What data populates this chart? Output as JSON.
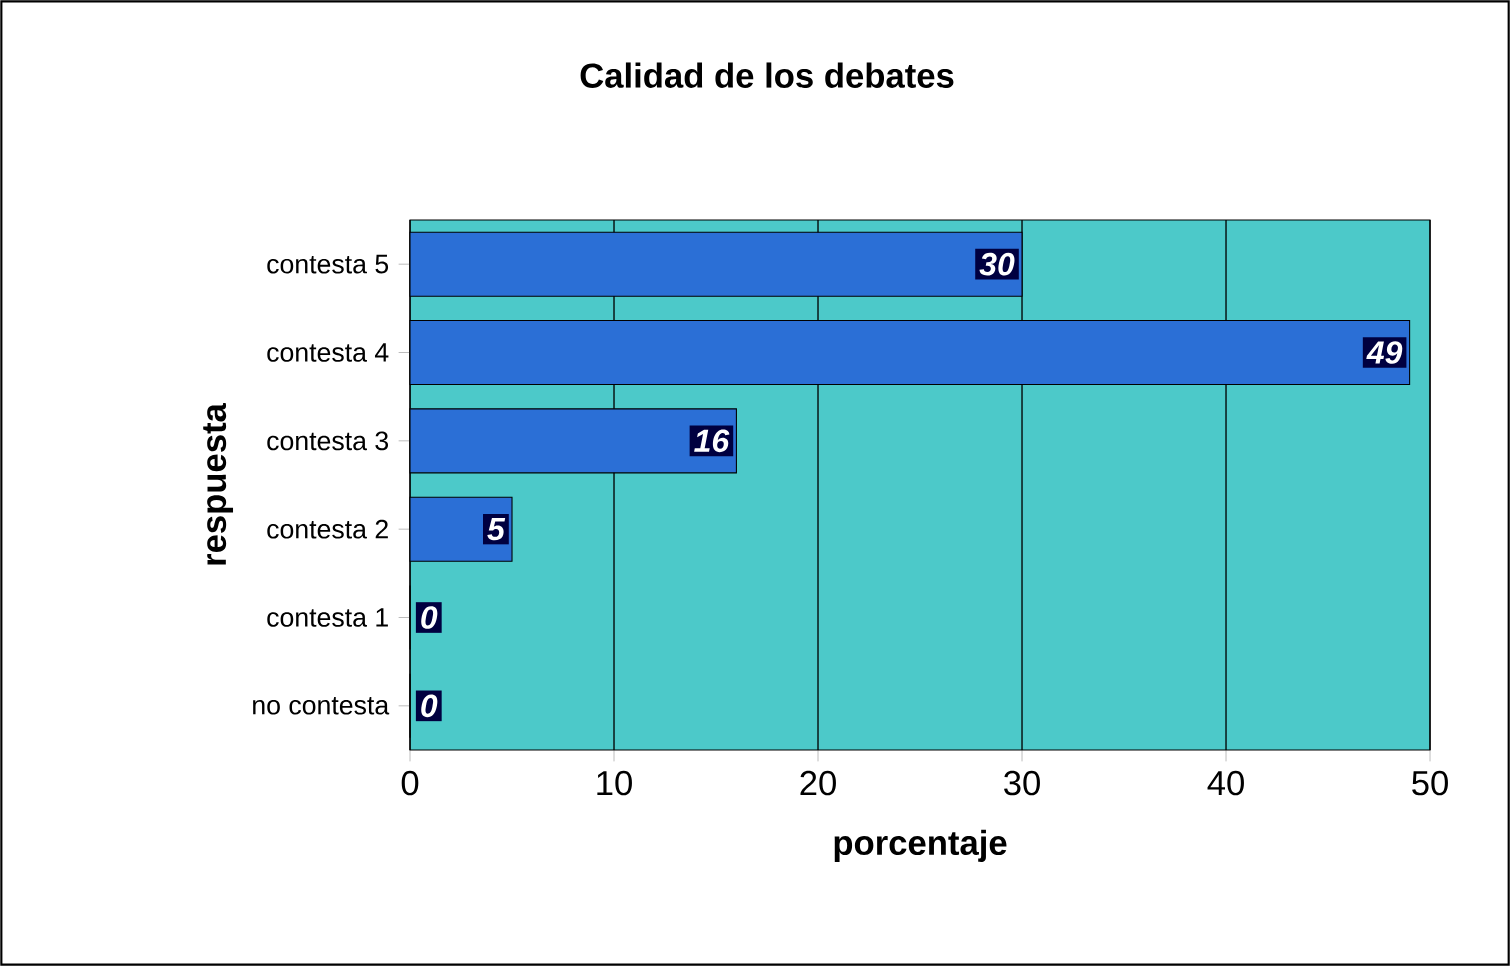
{
  "chart_data": {
    "type": "bar",
    "orientation": "horizontal",
    "title": "Calidad de los debates",
    "xlabel": "porcentaje",
    "ylabel": "respuesta",
    "categories": [
      "contesta 5",
      "contesta 4",
      "contesta 3",
      "contesta 2",
      "contesta 1",
      "no contesta"
    ],
    "values": [
      30,
      49,
      16,
      5,
      0,
      0
    ],
    "colors": [
      "#2b6fd6",
      "#2b6fd6",
      "#2b6fd6",
      "#2b6fd6",
      "#2b6fd6",
      "#c0501a"
    ],
    "xlim": [
      0,
      50
    ],
    "xticks": [
      0,
      10,
      20,
      30,
      40,
      50
    ],
    "grid": "x",
    "data_labels": true
  }
}
